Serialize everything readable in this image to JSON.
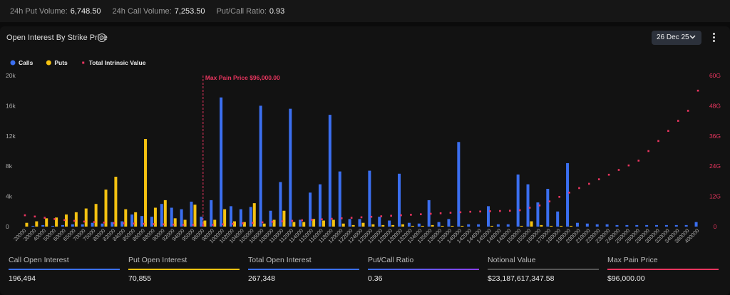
{
  "top_bar": {
    "items": [
      {
        "label": "24h Put Volume:",
        "value": "6,748.50"
      },
      {
        "label": "24h Call Volume:",
        "value": "7,253.50"
      },
      {
        "label": "Put/Call Ratio:",
        "value": "0.93"
      }
    ]
  },
  "card": {
    "title": "Open Interest By Strike Price",
    "date": "26 Dec 25"
  },
  "chart_data": {
    "type": "bar",
    "categories": [
      "20000",
      "30000",
      "40000",
      "50000",
      "60000",
      "65000",
      "70000",
      "75000",
      "80000",
      "82000",
      "84000",
      "85000",
      "86000",
      "88000",
      "90000",
      "92000",
      "94000",
      "95000",
      "96000",
      "98000",
      "100000",
      "102000",
      "104000",
      "105000",
      "106000",
      "108000",
      "110000",
      "112000",
      "114000",
      "115000",
      "116000",
      "118000",
      "120000",
      "122000",
      "124000",
      "125000",
      "126000",
      "128000",
      "130000",
      "132000",
      "134000",
      "135000",
      "136000",
      "138000",
      "140000",
      "142000",
      "144000",
      "145000",
      "146000",
      "148000",
      "150000",
      "155000",
      "160000",
      "170000",
      "180000",
      "190000",
      "200000",
      "210000",
      "220000",
      "230000",
      "240000",
      "250000",
      "260000",
      "280000",
      "300000",
      "320000",
      "340000",
      "360000",
      "400000"
    ],
    "series": [
      {
        "name": "Calls",
        "color": "#3b6ff0",
        "values": [
          0,
          100,
          200,
          100,
          200,
          300,
          300,
          500,
          400,
          600,
          700,
          1600,
          1400,
          1300,
          3000,
          2500,
          2300,
          3300,
          1300,
          3500,
          17100,
          2700,
          2300,
          2600,
          16000,
          2100,
          5900,
          15600,
          900,
          4500,
          5600,
          14800,
          7300,
          1000,
          1000,
          7400,
          1300,
          800,
          7000,
          500,
          400,
          3500,
          600,
          1000,
          11200,
          300,
          300,
          2700,
          300,
          300,
          6900,
          5600,
          3200,
          5000,
          2000,
          8400,
          500,
          400,
          300,
          300,
          200,
          200,
          200,
          200,
          200,
          200,
          200,
          200,
          600
        ]
      },
      {
        "name": "Puts",
        "color": "#f5c211",
        "values": [
          500,
          700,
          1100,
          1200,
          1600,
          1900,
          2400,
          3000,
          4900,
          6600,
          2300,
          1900,
          11600,
          2500,
          3500,
          1100,
          900,
          2900,
          800,
          900,
          2300,
          700,
          600,
          3100,
          400,
          900,
          2100,
          600,
          600,
          1000,
          800,
          900,
          400,
          200,
          500,
          300,
          200,
          200,
          300,
          100,
          100,
          200,
          100,
          100,
          100,
          0,
          0,
          100,
          0,
          0,
          100,
          700,
          200,
          100,
          100,
          100,
          0,
          0,
          0,
          0,
          0,
          0,
          0,
          0,
          0,
          0,
          0,
          0,
          0
        ]
      },
      {
        "name": "Total Intrinsic Value",
        "color": "#e8355f",
        "axis": "y2",
        "values": [
          4500000000,
          4000000000,
          3500000000,
          3000000000,
          2600000000,
          2300000000,
          2000000000,
          1800000000,
          1600000000,
          1400000000,
          1300000000,
          1200000000,
          1100000000,
          1000000000,
          900000000,
          800000000,
          700000000,
          700000000,
          600000000,
          700000000,
          900000000,
          1100000000,
          1300000000,
          1500000000,
          1700000000,
          1900000000,
          2100000000,
          2300000000,
          2500000000,
          2700000000,
          2900000000,
          3100000000,
          3300000000,
          3500000000,
          3700000000,
          3900000000,
          4100000000,
          4300000000,
          4500000000,
          4700000000,
          4900000000,
          5100000000,
          5300000000,
          5500000000,
          5700000000,
          5900000000,
          6000000000,
          6100000000,
          6200000000,
          6300000000,
          6500000000,
          7500000000,
          8400000000,
          10000000000,
          11800000000,
          13500000000,
          15300000000,
          17000000000,
          18800000000,
          20600000000,
          22500000000,
          24300000000,
          26200000000,
          30000000000,
          34000000000,
          38000000000,
          42000000000,
          46000000000,
          54000000000
        ]
      }
    ],
    "ylim": [
      0,
      20000
    ],
    "yticks": [
      0,
      {
        "value": 4000,
        "label": "4k"
      },
      {
        "value": 8000,
        "label": "8k"
      },
      {
        "value": 12000,
        "label": "12k"
      },
      {
        "value": 16000,
        "label": "16k"
      },
      {
        "value": 20000,
        "label": "20k"
      }
    ],
    "y2lim": [
      0,
      60000000000
    ],
    "y2ticks": [
      0,
      {
        "value": 12000000000,
        "label": "12G"
      },
      {
        "value": 24000000000,
        "label": "24G"
      },
      {
        "value": 36000000000,
        "label": "36G"
      },
      {
        "value": 48000000000,
        "label": "48G"
      },
      {
        "value": 60000000000,
        "label": "60G"
      }
    ],
    "grid": false,
    "annotation": {
      "label": "Max Pain Price $96,000.00",
      "x": 96000
    }
  },
  "summary": [
    {
      "label": "Call Open Interest",
      "value": "196,494"
    },
    {
      "label": "Put Open Interest",
      "value": "70,855"
    },
    {
      "label": "Total Open Interest",
      "value": "267,348"
    },
    {
      "label": "Put/Call Ratio",
      "value": "0.36"
    },
    {
      "label": "Notional Value",
      "value": "$23,187,617,347.58"
    },
    {
      "label": "Max Pain Price",
      "value": "$96,000.00"
    }
  ]
}
